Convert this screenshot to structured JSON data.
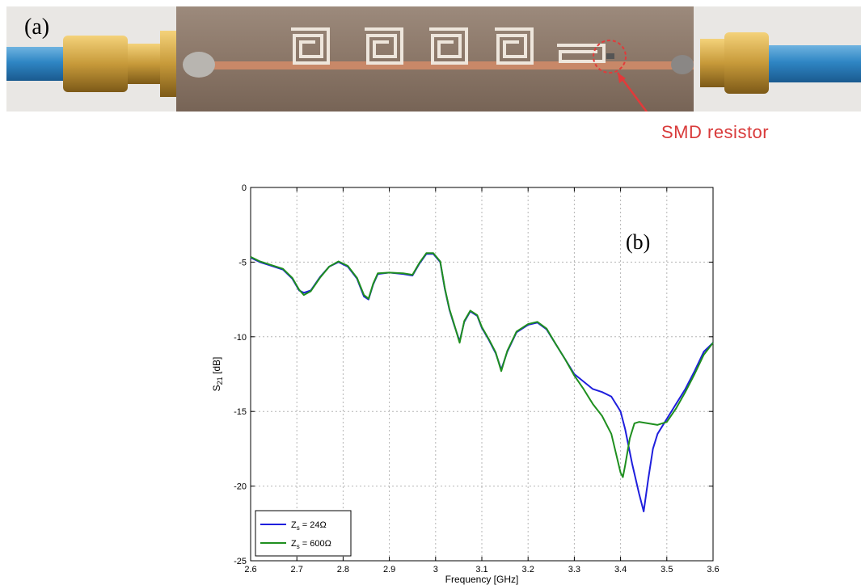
{
  "panel_a": {
    "label": "(a)",
    "annotation": "SMD resistor",
    "colors": {
      "board": "#8b7768",
      "trace": "#c88868",
      "cable": "#2f86c4",
      "connector": "#c79a3a",
      "annotation": "#d93a3a"
    }
  },
  "chart_data": {
    "type": "line",
    "title": "",
    "panel_label": "(b)",
    "xlabel": "Frequency [GHz]",
    "ylabel": "S21 [dB]",
    "xlim": [
      2.6,
      3.6
    ],
    "ylim": [
      -25,
      0
    ],
    "xticks": [
      2.6,
      2.7,
      2.8,
      2.9,
      3.0,
      3.1,
      3.2,
      3.3,
      3.4,
      3.5,
      3.6
    ],
    "xtick_labels": [
      "2.6",
      "2.7",
      "2.8",
      "2.9",
      "3",
      "3.1",
      "3.2",
      "3.3",
      "3.4",
      "3.5",
      "3.6"
    ],
    "yticks": [
      0,
      -5,
      -10,
      -15,
      -20,
      -25
    ],
    "ytick_labels": [
      "0",
      "-5",
      "-10",
      "-15",
      "-20",
      "-25"
    ],
    "grid": true,
    "legend_position": "bottom-left",
    "series": [
      {
        "name": "Zs = 24Ω",
        "color": "#1f1fdd",
        "x": [
          2.6,
          2.62,
          2.64,
          2.67,
          2.69,
          2.705,
          2.715,
          2.73,
          2.75,
          2.77,
          2.79,
          2.81,
          2.83,
          2.845,
          2.855,
          2.865,
          2.875,
          2.9,
          2.93,
          2.95,
          2.965,
          2.98,
          2.995,
          3.01,
          3.02,
          3.03,
          3.04,
          3.052,
          3.062,
          3.075,
          3.09,
          3.1,
          3.115,
          3.13,
          3.142,
          3.155,
          3.175,
          3.2,
          3.22,
          3.24,
          3.26,
          3.28,
          3.3,
          3.32,
          3.34,
          3.36,
          3.38,
          3.4,
          3.41,
          3.425,
          3.44,
          3.45,
          3.46,
          3.47,
          3.48,
          3.5,
          3.52,
          3.54,
          3.56,
          3.58,
          3.6
        ],
        "y": [
          -4.7,
          -5.0,
          -5.2,
          -5.5,
          -6.1,
          -6.9,
          -7.05,
          -6.9,
          -6.0,
          -5.3,
          -5.0,
          -5.3,
          -6.1,
          -7.3,
          -7.5,
          -6.5,
          -5.8,
          -5.7,
          -5.8,
          -5.9,
          -5.1,
          -4.45,
          -4.45,
          -5.0,
          -6.8,
          -8.2,
          -9.2,
          -10.3,
          -9.0,
          -8.3,
          -8.6,
          -9.4,
          -10.2,
          -11.1,
          -12.2,
          -11.0,
          -9.7,
          -9.2,
          -9.05,
          -9.5,
          -10.5,
          -11.5,
          -12.5,
          -13.0,
          -13.5,
          -13.7,
          -14.0,
          -15.0,
          -16.2,
          -18.5,
          -20.5,
          -21.7,
          -19.5,
          -17.5,
          -16.5,
          -15.5,
          -14.5,
          -13.5,
          -12.3,
          -11.0,
          -10.4
        ]
      },
      {
        "name": "Zs = 600Ω",
        "color": "#1f8f1f",
        "x": [
          2.6,
          2.62,
          2.64,
          2.67,
          2.69,
          2.705,
          2.715,
          2.73,
          2.75,
          2.77,
          2.79,
          2.81,
          2.83,
          2.845,
          2.855,
          2.865,
          2.875,
          2.9,
          2.93,
          2.95,
          2.965,
          2.98,
          2.995,
          3.01,
          3.02,
          3.03,
          3.04,
          3.052,
          3.062,
          3.075,
          3.09,
          3.1,
          3.115,
          3.13,
          3.142,
          3.155,
          3.175,
          3.2,
          3.22,
          3.24,
          3.26,
          3.28,
          3.3,
          3.32,
          3.34,
          3.36,
          3.38,
          3.39,
          3.4,
          3.405,
          3.41,
          3.42,
          3.43,
          3.44,
          3.46,
          3.48,
          3.5,
          3.52,
          3.54,
          3.56,
          3.58,
          3.6
        ],
        "y": [
          -4.65,
          -4.95,
          -5.15,
          -5.45,
          -6.05,
          -6.85,
          -7.2,
          -6.95,
          -6.05,
          -5.3,
          -4.95,
          -5.25,
          -6.05,
          -7.2,
          -7.45,
          -6.45,
          -5.75,
          -5.7,
          -5.75,
          -5.85,
          -5.05,
          -4.4,
          -4.4,
          -4.95,
          -6.75,
          -8.15,
          -9.15,
          -10.4,
          -8.95,
          -8.25,
          -8.55,
          -9.35,
          -10.15,
          -11.05,
          -12.3,
          -10.95,
          -9.65,
          -9.15,
          -9.0,
          -9.45,
          -10.5,
          -11.5,
          -12.6,
          -13.5,
          -14.5,
          -15.3,
          -16.5,
          -17.8,
          -19.1,
          -19.4,
          -18.6,
          -16.8,
          -15.8,
          -15.7,
          -15.8,
          -15.9,
          -15.7,
          -14.8,
          -13.7,
          -12.5,
          -11.2,
          -10.4
        ]
      }
    ]
  }
}
